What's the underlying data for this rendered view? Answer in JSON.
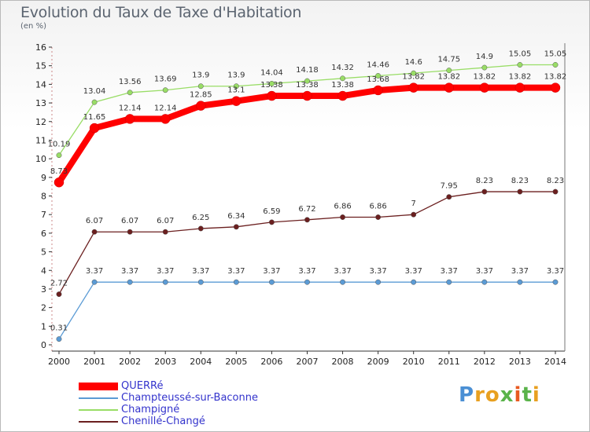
{
  "title": "Evolution du Taux de Taxe d'Habitation",
  "subtitle": "(en %)",
  "logo_text": "Proxiti",
  "chart_data": {
    "type": "line",
    "title": "Evolution du Taux de Taxe d'Habitation",
    "subtitle": "(en %)",
    "xlabel": "",
    "ylabel": "",
    "x": [
      "2000",
      "2001",
      "2002",
      "2003",
      "2004",
      "2005",
      "2006",
      "2007",
      "2008",
      "2009",
      "2010",
      "2011",
      "2012",
      "2013",
      "2014"
    ],
    "ylim": [
      0,
      16
    ],
    "yticks": [
      "0",
      "1",
      "2",
      "3",
      "4",
      "5",
      "6",
      "7",
      "8",
      "9",
      "10",
      "11",
      "12",
      "13",
      "14",
      "15",
      "16"
    ],
    "grid": false,
    "legend_position": "bottom-left",
    "series": [
      {
        "name": "QUERRé",
        "color": "#ff0000",
        "values": [
          8.73,
          11.65,
          12.14,
          12.14,
          12.85,
          13.1,
          13.38,
          13.38,
          13.38,
          13.68,
          13.82,
          13.82,
          13.82,
          13.82,
          13.82
        ],
        "labels": [
          "8.73",
          "11.65",
          "12.14",
          "12.14",
          "12.85",
          "13.1",
          "13.38",
          "13.38",
          "13.38",
          "13.68",
          "13.82",
          "13.82",
          "13.82",
          "13.82",
          "13.82"
        ]
      },
      {
        "name": "Champteussé-sur-Baconne",
        "color": "#5b9bd5",
        "values": [
          0.31,
          3.37,
          3.37,
          3.37,
          3.37,
          3.37,
          3.37,
          3.37,
          3.37,
          3.37,
          3.37,
          3.37,
          3.37,
          3.37,
          3.37
        ],
        "labels": [
          "0.31",
          "3.37",
          "3.37",
          "3.37",
          "3.37",
          "3.37",
          "3.37",
          "3.37",
          "3.37",
          "3.37",
          "3.37",
          "3.37",
          "3.37",
          "3.37",
          "3.37"
        ]
      },
      {
        "name": "Champigné",
        "color": "#99dd66",
        "values": [
          10.19,
          13.04,
          13.56,
          13.69,
          13.9,
          13.9,
          14.04,
          14.18,
          14.32,
          14.46,
          14.6,
          14.75,
          14.9,
          15.05,
          15.05
        ],
        "labels": [
          "10.19",
          "13.04",
          "13.56",
          "13.69",
          "13.9",
          "13.9",
          "14.04",
          "14.18",
          "14.32",
          "14.46",
          "14.6",
          "14.75",
          "14.9",
          "15.05",
          "15.05"
        ]
      },
      {
        "name": "Chenillé-Changé",
        "color": "#6b1f1f",
        "values": [
          2.72,
          6.07,
          6.07,
          6.07,
          6.25,
          6.34,
          6.59,
          6.72,
          6.86,
          6.86,
          7.0,
          7.95,
          8.23,
          8.23,
          8.23
        ],
        "labels": [
          "2.72",
          "6.07",
          "6.07",
          "6.07",
          "6.25",
          "6.34",
          "6.59",
          "6.72",
          "6.86",
          "6.86",
          "7",
          "7.95",
          "8.23",
          "8.23",
          "8.23"
        ]
      }
    ]
  }
}
